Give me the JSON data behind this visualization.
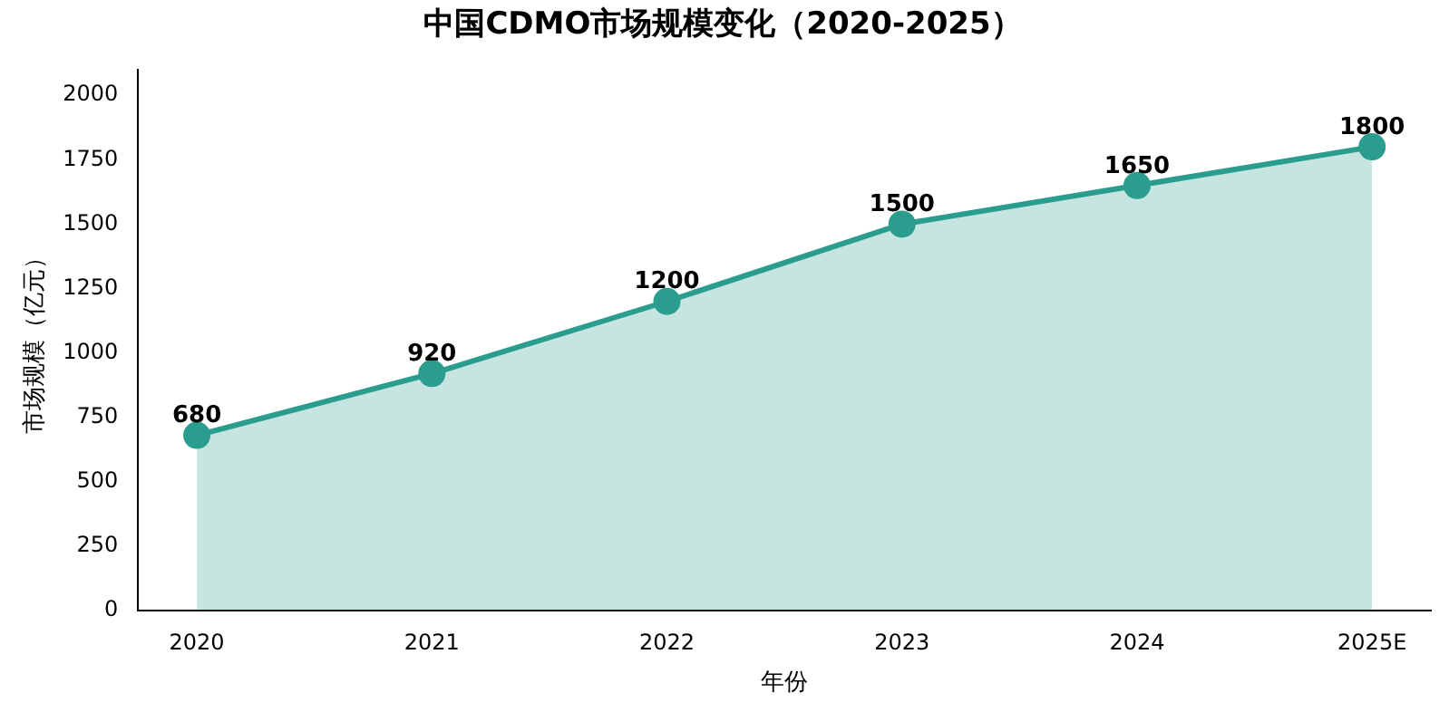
{
  "chart_data": {
    "type": "area",
    "title": "中国CDMO市场规模变化（2020-2025）",
    "xlabel": "年份",
    "ylabel": "市场规模（亿元）",
    "categories": [
      "2020",
      "2021",
      "2022",
      "2023",
      "2024",
      "2025E"
    ],
    "series": [
      {
        "color": "#2a9d8f",
        "values": [
          680,
          920,
          1200,
          1500,
          1650,
          1800
        ]
      }
    ],
    "ylim": [
      0,
      2100
    ],
    "yticks": [
      0,
      250,
      500,
      750,
      1000,
      1250,
      1500,
      1750,
      2000
    ],
    "grid": false,
    "marker": "circle",
    "data_labels": true
  }
}
